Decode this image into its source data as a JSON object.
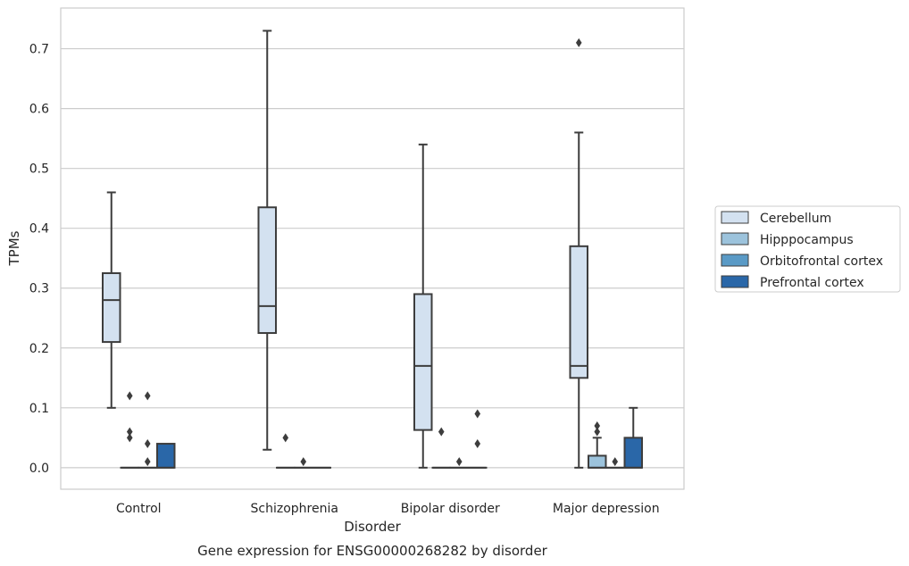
{
  "chart_data": {
    "type": "box",
    "title": "Gene expression for ENSG00000268282 by disorder",
    "xlabel": "Disorder",
    "ylabel": "TPMs",
    "ylim": [
      -0.036,
      0.768
    ],
    "yticks": [
      "0.0",
      "0.1",
      "0.2",
      "0.3",
      "0.4",
      "0.5",
      "0.6",
      "0.7"
    ],
    "ytick_values": [
      0,
      0.1,
      0.2,
      0.3,
      0.4,
      0.5,
      0.6,
      0.7
    ],
    "grid": "horizontal",
    "legend_placement": "right",
    "categories": [
      "Control",
      "Schizophrenia",
      "Bipolar disorder",
      "Major depression"
    ],
    "series": [
      {
        "name": "Cerebellum",
        "color": "#d3e1f0",
        "boxes": [
          {
            "whislo": 0.1,
            "q1": 0.21,
            "med": 0.28,
            "q3": 0.325,
            "whishi": 0.46,
            "fliers": []
          },
          {
            "whislo": 0.03,
            "q1": 0.225,
            "med": 0.27,
            "q3": 0.435,
            "whishi": 0.73,
            "fliers": []
          },
          {
            "whislo": 0.0,
            "q1": 0.063,
            "med": 0.17,
            "q3": 0.29,
            "whishi": 0.54,
            "fliers": []
          },
          {
            "whislo": 0.0,
            "q1": 0.15,
            "med": 0.17,
            "q3": 0.37,
            "whishi": 0.56,
            "fliers": [
              0.71
            ]
          }
        ]
      },
      {
        "name": "Hipppocampus",
        "color": "#9cc3dc",
        "boxes": [
          {
            "whislo": 0.0,
            "q1": 0.0,
            "med": 0.0,
            "q3": 0.0,
            "whishi": 0.0,
            "fliers": [
              0.05,
              0.06,
              0.12
            ]
          },
          {
            "whislo": 0.0,
            "q1": 0.0,
            "med": 0.0,
            "q3": 0.0,
            "whishi": 0.0,
            "fliers": [
              0.05
            ]
          },
          {
            "whislo": 0.0,
            "q1": 0.0,
            "med": 0.0,
            "q3": 0.0,
            "whishi": 0.0,
            "fliers": [
              0.06
            ]
          },
          {
            "whislo": 0.0,
            "q1": 0.0,
            "med": 0.0,
            "q3": 0.02,
            "whishi": 0.05,
            "fliers": [
              0.06,
              0.07
            ]
          }
        ]
      },
      {
        "name": "Orbitofrontal cortex",
        "color": "#5a9ac6",
        "boxes": [
          {
            "whislo": 0.0,
            "q1": 0.0,
            "med": 0.0,
            "q3": 0.0,
            "whishi": 0.0,
            "fliers": [
              0.01,
              0.04,
              0.12
            ]
          },
          {
            "whislo": 0.0,
            "q1": 0.0,
            "med": 0.0,
            "q3": 0.0,
            "whishi": 0.0,
            "fliers": [
              0.01
            ]
          },
          {
            "whislo": 0.0,
            "q1": 0.0,
            "med": 0.0,
            "q3": 0.0,
            "whishi": 0.0,
            "fliers": [
              0.01
            ]
          },
          {
            "whislo": 0.0,
            "q1": 0.0,
            "med": 0.0,
            "q3": 0.0,
            "whishi": 0.0,
            "fliers": [
              0.01
            ]
          }
        ]
      },
      {
        "name": "Prefrontal cortex",
        "color": "#2a67a8",
        "boxes": [
          {
            "whislo": 0.0,
            "q1": 0.0,
            "med": 0.0,
            "q3": 0.04,
            "whishi": 0.04,
            "fliers": []
          },
          {
            "whislo": 0.0,
            "q1": 0.0,
            "med": 0.0,
            "q3": 0.0,
            "whishi": 0.0,
            "fliers": []
          },
          {
            "whislo": 0.0,
            "q1": 0.0,
            "med": 0.0,
            "q3": 0.0,
            "whishi": 0.0,
            "fliers": [
              0.04,
              0.09
            ]
          },
          {
            "whislo": 0.0,
            "q1": 0.0,
            "med": 0.0,
            "q3": 0.05,
            "whishi": 0.1,
            "fliers": []
          }
        ]
      }
    ]
  }
}
